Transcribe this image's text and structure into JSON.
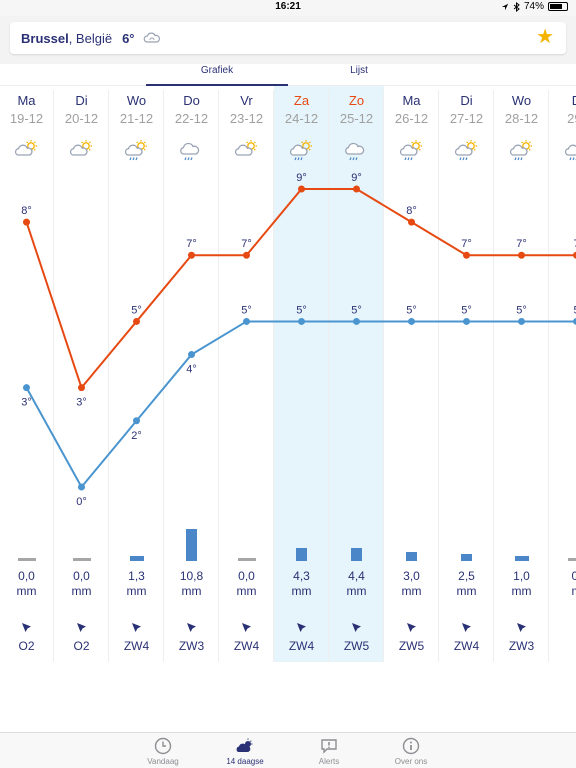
{
  "status_bar": {
    "time": "16:21",
    "battery": "74%",
    "battery_level": 0.74
  },
  "location": {
    "city": "Brussel",
    "country": ", België",
    "temperature": "6°",
    "icon": "cloudy-icon",
    "favorite_icon": "star-icon"
  },
  "tabs": [
    {
      "label": "Grafiek",
      "active": true
    },
    {
      "label": "Lijst",
      "active": false
    }
  ],
  "colors": {
    "max_line": "#e64a12",
    "min_line": "#4a95cf",
    "accent": "#2a3174",
    "weekend": "#e64a12",
    "highlight": "#e6f4fb",
    "rain_bar": "#4a86c8"
  },
  "days": [
    {
      "name": "Ma",
      "date": "19-12",
      "weekend": false,
      "icon": "partly-cloudy-sun-icon",
      "max": 8,
      "min": 3,
      "max_label": "8°",
      "min_label": "3°",
      "rain": 0.0,
      "rain_label": "0,0",
      "unit": "mm",
      "wind": "O2"
    },
    {
      "name": "Di",
      "date": "20-12",
      "weekend": false,
      "icon": "partly-cloudy-sun-icon",
      "max": 3,
      "min": 0,
      "max_label": "3°",
      "min_label": "0°",
      "rain": 0.0,
      "rain_label": "0,0",
      "unit": "mm",
      "wind": "O2"
    },
    {
      "name": "Wo",
      "date": "21-12",
      "weekend": false,
      "icon": "sun-cloud-rain-icon",
      "max": 5,
      "min": 2,
      "max_label": "5°",
      "min_label": "2°",
      "rain": 1.3,
      "rain_label": "1,3",
      "unit": "mm",
      "wind": "ZW4"
    },
    {
      "name": "Do",
      "date": "22-12",
      "weekend": false,
      "icon": "rain-cloud-icon",
      "max": 7,
      "min": 4,
      "max_label": "7°",
      "min_label": "4°",
      "rain": 10.8,
      "rain_label": "10,8",
      "unit": "mm",
      "wind": "ZW3"
    },
    {
      "name": "Vr",
      "date": "23-12",
      "weekend": false,
      "icon": "partly-cloudy-sun-icon",
      "max": 7,
      "min": 5,
      "max_label": "7°",
      "min_label": "5°",
      "rain": 0.0,
      "rain_label": "0,0",
      "unit": "mm",
      "wind": "ZW4"
    },
    {
      "name": "Za",
      "date": "24-12",
      "weekend": true,
      "icon": "sun-cloud-rain-icon",
      "max": 9,
      "min": 5,
      "max_label": "9°",
      "min_label": "5°",
      "rain": 4.3,
      "rain_label": "4,3",
      "unit": "mm",
      "wind": "ZW4"
    },
    {
      "name": "Zo",
      "date": "25-12",
      "weekend": true,
      "icon": "rain-cloud-icon",
      "max": 9,
      "min": 5,
      "max_label": "9°",
      "min_label": "5°",
      "rain": 4.4,
      "rain_label": "4,4",
      "unit": "mm",
      "wind": "ZW5"
    },
    {
      "name": "Ma",
      "date": "26-12",
      "weekend": false,
      "icon": "sun-cloud-rain-icon",
      "max": 8,
      "min": 5,
      "max_label": "8°",
      "min_label": "5°",
      "rain": 3.0,
      "rain_label": "3,0",
      "unit": "mm",
      "wind": "ZW5"
    },
    {
      "name": "Di",
      "date": "27-12",
      "weekend": false,
      "icon": "sun-cloud-rain-icon",
      "max": 7,
      "min": 5,
      "max_label": "7°",
      "min_label": "5°",
      "rain": 2.5,
      "rain_label": "2,5",
      "unit": "mm",
      "wind": "ZW4"
    },
    {
      "name": "Wo",
      "date": "28-12",
      "weekend": false,
      "icon": "sun-cloud-rain-icon",
      "max": 7,
      "min": 5,
      "max_label": "7°",
      "min_label": "5°",
      "rain": 1.0,
      "rain_label": "1,0",
      "unit": "mm",
      "wind": "ZW3"
    },
    {
      "name": "D",
      "date": "29-",
      "weekend": false,
      "icon": "sun-cloud-rain-icon",
      "max": 7,
      "min": 5,
      "max_label": "7",
      "min_label": "5",
      "rain": 0.0,
      "rain_label": "0,",
      "unit": "m",
      "wind": ""
    }
  ],
  "highlight_days": [
    5,
    6
  ],
  "temp_range": [
    0,
    9
  ],
  "tabbar": [
    {
      "label": "Vandaag",
      "icon": "clock-icon",
      "active": false
    },
    {
      "label": "14 daagse",
      "icon": "cloud-sun-icon",
      "active": true
    },
    {
      "label": "Alerts",
      "icon": "alert-bubble-icon",
      "active": false
    },
    {
      "label": "Over ons",
      "icon": "info-icon",
      "active": false
    }
  ]
}
